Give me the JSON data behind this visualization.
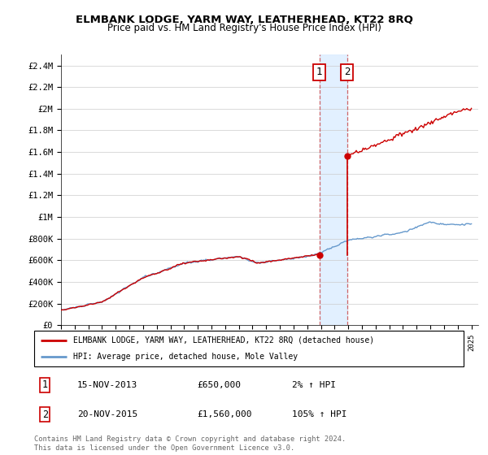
{
  "title": "ELMBANK LODGE, YARM WAY, LEATHERHEAD, KT22 8RQ",
  "subtitle": "Price paid vs. HM Land Registry's House Price Index (HPI)",
  "legend_line1": "ELMBANK LODGE, YARM WAY, LEATHERHEAD, KT22 8RQ (detached house)",
  "legend_line2": "HPI: Average price, detached house, Mole Valley",
  "transaction1_date": "15-NOV-2013",
  "transaction1_price": "£650,000",
  "transaction1_hpi": "2% ↑ HPI",
  "transaction2_date": "20-NOV-2015",
  "transaction2_price": "£1,560,000",
  "transaction2_hpi": "105% ↑ HPI",
  "footer": "Contains HM Land Registry data © Crown copyright and database right 2024.\nThis data is licensed under the Open Government Licence v3.0.",
  "hpi_color": "#6699cc",
  "price_color": "#cc0000",
  "shade_color": "#ddeeff",
  "ytick_labels": [
    "£0",
    "£200K",
    "£400K",
    "£600K",
    "£800K",
    "£1M",
    "£1.2M",
    "£1.4M",
    "£1.6M",
    "£1.8M",
    "£2M",
    "£2.2M",
    "£2.4M"
  ],
  "ytick_values": [
    0,
    200000,
    400000,
    600000,
    800000,
    1000000,
    1200000,
    1400000,
    1600000,
    1800000,
    2000000,
    2200000,
    2400000
  ],
  "ylim": [
    0,
    2500000
  ],
  "xlim_start": 1995.0,
  "xlim_end": 2025.5,
  "transaction1_x": 2013.88,
  "transaction1_y": 650000,
  "transaction2_x": 2015.9,
  "transaction2_y": 1560000
}
